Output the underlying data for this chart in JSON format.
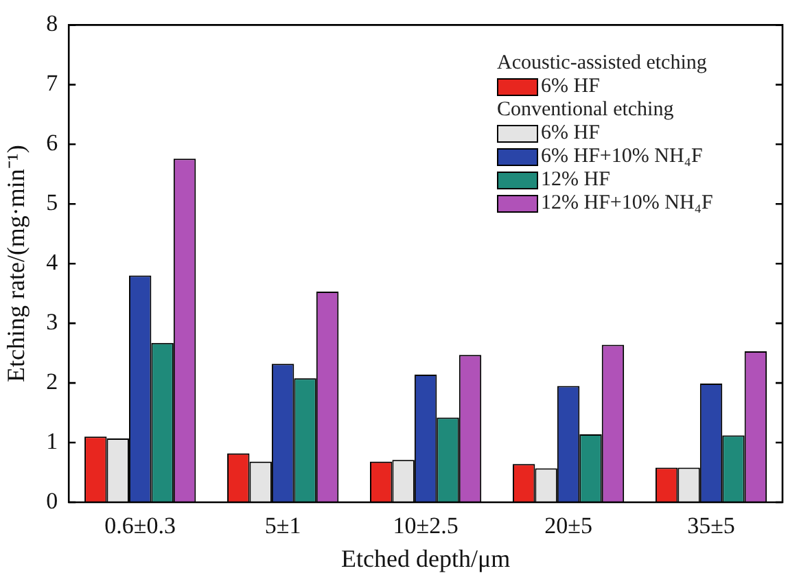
{
  "chart_data": {
    "type": "bar",
    "xlabel": "Etched depth/μm",
    "ylabel": "Etching rate/(mg·min⁻¹)",
    "categories": [
      "0.6±0.3",
      "5±1",
      "10±2.5",
      "20±5",
      "35±5"
    ],
    "series": [
      {
        "name": "6% HF",
        "color": "#e8261f",
        "values": [
          1.1,
          0.82,
          0.68,
          0.64,
          0.58
        ]
      },
      {
        "name": "6% HF",
        "color": "#e4e4e4",
        "values": [
          1.07,
          0.68,
          0.71,
          0.57,
          0.58
        ]
      },
      {
        "name": "6% HF+10% NH₄F",
        "color": "#2a45a8",
        "values": [
          3.8,
          2.32,
          2.14,
          1.95,
          1.99
        ]
      },
      {
        "name": "12% HF",
        "color": "#1f8a7a",
        "values": [
          2.67,
          2.08,
          1.42,
          1.14,
          1.12
        ]
      },
      {
        "name": "12% HF+10% NH₄F",
        "color": "#b052b8",
        "values": [
          5.76,
          3.53,
          2.47,
          2.64,
          2.53
        ]
      }
    ],
    "annotations": [
      "Acoustic-assisted etching",
      "Conventional etching"
    ],
    "ylim": [
      0,
      8
    ],
    "yticks": [
      0,
      1,
      2,
      3,
      4,
      5,
      6,
      7,
      8
    ],
    "grid": false,
    "legend": "top right"
  }
}
